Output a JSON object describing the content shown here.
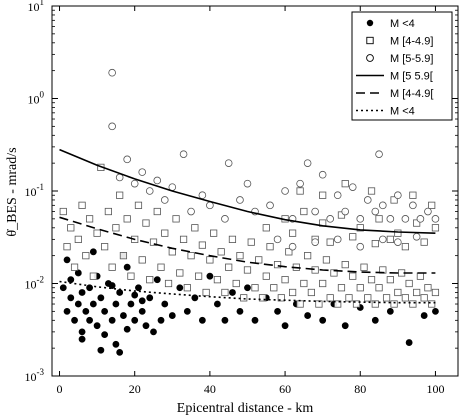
{
  "chart_data": {
    "type": "scatter",
    "xlabel": "Epicentral distance - km",
    "ylabel": "θ̇_BES - mrad/s",
    "xlim": [
      -2,
      106
    ],
    "ylim": [
      0.001,
      10
    ],
    "yscale": "log",
    "x_ticks": [
      0,
      20,
      40,
      60,
      80,
      100
    ],
    "y_ticks": [
      {
        "value": 0.001,
        "base": "10",
        "exp": "-3"
      },
      {
        "value": 0.01,
        "base": "10",
        "exp": "-2"
      },
      {
        "value": 0.1,
        "base": "10",
        "exp": "-1"
      },
      {
        "value": 1,
        "base": "10",
        "exp": "0"
      },
      {
        "value": 10,
        "base": "10",
        "exp": "1"
      }
    ],
    "grid": false,
    "legend_position": "top-right",
    "legend": [
      {
        "label": "M <4",
        "marker": "filled-circle"
      },
      {
        "label": "M [4-4.9]",
        "marker": "open-square"
      },
      {
        "label": "M [5-5.9]",
        "marker": "open-circle"
      },
      {
        "label": "M [5 5.9[",
        "line": "solid"
      },
      {
        "label": "M [4-4.9[",
        "line": "dashed"
      },
      {
        "label": "M <4",
        "line": "dotted"
      }
    ],
    "series": [
      {
        "name": "M <4",
        "marker": "filled-circle",
        "points": [
          [
            1,
            0.009
          ],
          [
            2,
            0.005
          ],
          [
            3,
            0.011
          ],
          [
            3,
            0.007
          ],
          [
            4,
            0.004
          ],
          [
            5,
            0.006
          ],
          [
            5,
            0.013
          ],
          [
            6,
            0.008
          ],
          [
            6,
            0.003
          ],
          [
            7,
            0.005
          ],
          [
            8,
            0.009
          ],
          [
            8,
            0.004
          ],
          [
            9,
            0.006
          ],
          [
            10,
            0.012
          ],
          [
            10,
            0.0035
          ],
          [
            11,
            0.007
          ],
          [
            12,
            0.005
          ],
          [
            12,
            0.0028
          ],
          [
            13,
            0.01
          ],
          [
            14,
            0.004
          ],
          [
            15,
            0.006
          ],
          [
            15,
            0.0022
          ],
          [
            16,
            0.008
          ],
          [
            17,
            0.0045
          ],
          [
            18,
            0.0032
          ],
          [
            18,
            0.015
          ],
          [
            19,
            0.006
          ],
          [
            20,
            0.004
          ],
          [
            21,
            0.009
          ],
          [
            22,
            0.005
          ],
          [
            23,
            0.0035
          ],
          [
            24,
            0.007
          ],
          [
            25,
            0.003
          ],
          [
            26,
            0.011
          ],
          [
            27,
            0.004
          ],
          [
            28,
            0.006
          ],
          [
            30,
            0.0045
          ],
          [
            32,
            0.009
          ],
          [
            34,
            0.005
          ],
          [
            36,
            0.007
          ],
          [
            38,
            0.004
          ],
          [
            40,
            0.012
          ],
          [
            42,
            0.006
          ],
          [
            44,
            0.004
          ],
          [
            46,
            0.008
          ],
          [
            48,
            0.005
          ],
          [
            50,
            0.009
          ],
          [
            52,
            0.004
          ],
          [
            55,
            0.007
          ],
          [
            58,
            0.005
          ],
          [
            60,
            0.0035
          ],
          [
            63,
            0.006
          ],
          [
            66,
            0.0045
          ],
          [
            70,
            0.004
          ],
          [
            73,
            0.006
          ],
          [
            76,
            0.0035
          ],
          [
            80,
            0.0055
          ],
          [
            84,
            0.004
          ],
          [
            88,
            0.005
          ],
          [
            93,
            0.0023
          ],
          [
            97,
            0.0045
          ],
          [
            100,
            0.005
          ],
          [
            2,
            0.018
          ],
          [
            9,
            0.022
          ],
          [
            17,
            0.02
          ],
          [
            6,
            0.0025
          ],
          [
            11,
            0.0019
          ],
          [
            16,
            0.0018
          ],
          [
            14,
            0.0095
          ],
          [
            20,
            0.0075
          ],
          [
            22,
            0.0065
          ]
        ]
      },
      {
        "name": "M [4-4.9]",
        "marker": "open-square",
        "points": [
          [
            1,
            0.06
          ],
          [
            2,
            0.025
          ],
          [
            3,
            0.04
          ],
          [
            4,
            0.015
          ],
          [
            5,
            0.03
          ],
          [
            6,
            0.07
          ],
          [
            7,
            0.02
          ],
          [
            8,
            0.05
          ],
          [
            9,
            0.012
          ],
          [
            10,
            0.035
          ],
          [
            11,
            0.18
          ],
          [
            12,
            0.025
          ],
          [
            13,
            0.06
          ],
          [
            14,
            0.015
          ],
          [
            15,
            0.04
          ],
          [
            16,
            0.09
          ],
          [
            17,
            0.02
          ],
          [
            18,
            0.05
          ],
          [
            19,
            0.012
          ],
          [
            20,
            0.03
          ],
          [
            21,
            0.07
          ],
          [
            22,
            0.018
          ],
          [
            23,
            0.045
          ],
          [
            24,
            0.011
          ],
          [
            25,
            0.028
          ],
          [
            26,
            0.06
          ],
          [
            27,
            0.015
          ],
          [
            28,
            0.035
          ],
          [
            29,
            0.01
          ],
          [
            30,
            0.022
          ],
          [
            31,
            0.05
          ],
          [
            32,
            0.013
          ],
          [
            33,
            0.03
          ],
          [
            34,
            0.009
          ],
          [
            35,
            0.02
          ],
          [
            36,
            0.04
          ],
          [
            37,
            0.012
          ],
          [
            38,
            0.026
          ],
          [
            39,
            0.008
          ],
          [
            40,
            0.018
          ],
          [
            41,
            0.035
          ],
          [
            42,
            0.011
          ],
          [
            43,
            0.022
          ],
          [
            44,
            0.008
          ],
          [
            45,
            0.015
          ],
          [
            46,
            0.03
          ],
          [
            47,
            0.01
          ],
          [
            48,
            0.02
          ],
          [
            49,
            0.007
          ],
          [
            50,
            0.014
          ],
          [
            51,
            0.028
          ],
          [
            52,
            0.009
          ],
          [
            53,
            0.018
          ],
          [
            54,
            0.007
          ],
          [
            55,
            0.012
          ],
          [
            56,
            0.025
          ],
          [
            57,
            0.009
          ],
          [
            58,
            0.016
          ],
          [
            59,
            0.007
          ],
          [
            60,
            0.011
          ],
          [
            61,
            0.022
          ],
          [
            62,
            0.008
          ],
          [
            63,
            0.015
          ],
          [
            64,
            0.006
          ],
          [
            65,
            0.01
          ],
          [
            66,
            0.02
          ],
          [
            67,
            0.008
          ],
          [
            68,
            0.014
          ],
          [
            69,
            0.006
          ],
          [
            70,
            0.01
          ],
          [
            71,
            0.018
          ],
          [
            72,
            0.007
          ],
          [
            73,
            0.013
          ],
          [
            74,
            0.006
          ],
          [
            75,
            0.009
          ],
          [
            76,
            0.016
          ],
          [
            77,
            0.007
          ],
          [
            78,
            0.012
          ],
          [
            79,
            0.006
          ],
          [
            80,
            0.009
          ],
          [
            81,
            0.015
          ],
          [
            82,
            0.007
          ],
          [
            83,
            0.011
          ],
          [
            84,
            0.006
          ],
          [
            85,
            0.009
          ],
          [
            86,
            0.014
          ],
          [
            87,
            0.007
          ],
          [
            88,
            0.011
          ],
          [
            89,
            0.006
          ],
          [
            90,
            0.008
          ],
          [
            91,
            0.013
          ],
          [
            92,
            0.007
          ],
          [
            93,
            0.01
          ],
          [
            94,
            0.006
          ],
          [
            95,
            0.008
          ],
          [
            96,
            0.012
          ],
          [
            97,
            0.007
          ],
          [
            98,
            0.009
          ],
          [
            99,
            0.006
          ],
          [
            100,
            0.008
          ],
          [
            60,
            0.05
          ],
          [
            65,
            0.06
          ],
          [
            70,
            0.045
          ],
          [
            75,
            0.055
          ],
          [
            80,
            0.04
          ],
          [
            85,
            0.05
          ],
          [
            90,
            0.035
          ],
          [
            95,
            0.045
          ],
          [
            100,
            0.04
          ],
          [
            55,
            0.04
          ],
          [
            62,
            0.035
          ],
          [
            68,
            0.03
          ],
          [
            72,
            0.028
          ],
          [
            78,
            0.032
          ],
          [
            84,
            0.027
          ],
          [
            88,
            0.03
          ],
          [
            92,
            0.025
          ],
          [
            97,
            0.028
          ],
          [
            64,
            0.1
          ],
          [
            70,
            0.09
          ],
          [
            76,
            0.12
          ],
          [
            83,
            0.1
          ],
          [
            89,
            0.08
          ],
          [
            94,
            0.09
          ],
          [
            99,
            0.07
          ]
        ]
      },
      {
        "name": "M [5-5.9]",
        "marker": "open-circle",
        "points": [
          [
            14,
            1.9
          ],
          [
            14,
            0.5
          ],
          [
            16,
            0.14
          ],
          [
            18,
            0.22
          ],
          [
            20,
            0.12
          ],
          [
            22,
            0.16
          ],
          [
            24,
            0.1
          ],
          [
            26,
            0.13
          ],
          [
            28,
            0.08
          ],
          [
            30,
            0.11
          ],
          [
            33,
            0.25
          ],
          [
            35,
            0.06
          ],
          [
            38,
            0.09
          ],
          [
            40,
            0.07
          ],
          [
            44,
            0.05
          ],
          [
            48,
            0.08
          ],
          [
            52,
            0.06
          ],
          [
            56,
            0.07
          ],
          [
            60,
            0.1
          ],
          [
            62,
            0.05
          ],
          [
            64,
            0.12
          ],
          [
            66,
            0.2
          ],
          [
            68,
            0.06
          ],
          [
            70,
            0.15
          ],
          [
            72,
            0.05
          ],
          [
            74,
            0.09
          ],
          [
            76,
            0.06
          ],
          [
            78,
            0.11
          ],
          [
            80,
            0.05
          ],
          [
            82,
            0.08
          ],
          [
            84,
            0.06
          ],
          [
            85,
            0.25
          ],
          [
            86,
            0.07
          ],
          [
            88,
            0.05
          ],
          [
            90,
            0.09
          ],
          [
            92,
            0.05
          ],
          [
            94,
            0.07
          ],
          [
            96,
            0.05
          ],
          [
            98,
            0.06
          ],
          [
            100,
            0.05
          ],
          [
            45,
            0.2
          ],
          [
            50,
            0.12
          ],
          [
            58,
            0.03
          ],
          [
            62,
            0.025
          ],
          [
            68,
            0.028
          ],
          [
            74,
            0.03
          ],
          [
            80,
            0.025
          ],
          [
            86,
            0.03
          ],
          [
            90,
            0.028
          ],
          [
            95,
            0.032
          ]
        ]
      }
    ],
    "curves": [
      {
        "name": "M [5 5.9[",
        "style": "solid",
        "x": [
          0,
          10,
          20,
          30,
          40,
          50,
          60,
          70,
          80,
          90,
          100
        ],
        "y": [
          0.28,
          0.19,
          0.135,
          0.1,
          0.077,
          0.06,
          0.049,
          0.042,
          0.038,
          0.036,
          0.035
        ]
      },
      {
        "name": "M [4-4.9[",
        "style": "dashed",
        "x": [
          0,
          10,
          20,
          30,
          40,
          50,
          60,
          70,
          80,
          90,
          100
        ],
        "y": [
          0.052,
          0.039,
          0.03,
          0.024,
          0.02,
          0.017,
          0.0152,
          0.014,
          0.0133,
          0.013,
          0.013
        ]
      },
      {
        "name": "M <4",
        "style": "dotted",
        "x": [
          0,
          10,
          20,
          30,
          40,
          50,
          60,
          70,
          80,
          90,
          100
        ],
        "y": [
          0.0105,
          0.0092,
          0.0083,
          0.0077,
          0.0072,
          0.0068,
          0.0066,
          0.0064,
          0.0063,
          0.0062,
          0.0062
        ]
      }
    ]
  }
}
